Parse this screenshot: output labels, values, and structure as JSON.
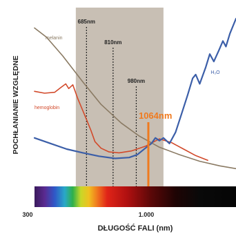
{
  "colors": {
    "melanin": "#8a7a63",
    "hemoglobin": "#d2492a",
    "water": "#3b5ea8",
    "highlight_band": "#c8bfb4",
    "laser_1064": "#f07a1e",
    "guide_line": "#222222",
    "axis_text": "#222222"
  },
  "chart_data": {
    "type": "line",
    "xlabel": "DŁUGOŚĆ FALI (nm)",
    "ylabel": "POCHŁANIANIE WZGLĘDNE",
    "x_ticks": [
      "300",
      "1.000"
    ],
    "series": [
      {
        "name": "melanin",
        "points": [
          [
            0,
            8.5
          ],
          [
            0.06,
            8.0
          ],
          [
            0.14,
            7.0
          ],
          [
            0.24,
            5.6
          ],
          [
            0.33,
            4.4
          ],
          [
            0.43,
            3.4
          ],
          [
            0.52,
            2.7
          ],
          [
            0.62,
            2.1
          ],
          [
            0.72,
            1.7
          ],
          [
            0.82,
            1.35
          ],
          [
            0.92,
            1.1
          ],
          [
            1.0,
            0.95
          ]
        ]
      },
      {
        "name": "hemoglobin",
        "points": [
          [
            0,
            5.1
          ],
          [
            0.05,
            5.0
          ],
          [
            0.1,
            5.05
          ],
          [
            0.13,
            5.3
          ],
          [
            0.155,
            5.5
          ],
          [
            0.17,
            5.25
          ],
          [
            0.19,
            5.45
          ],
          [
            0.215,
            4.7
          ],
          [
            0.25,
            3.8
          ],
          [
            0.28,
            3.0
          ],
          [
            0.3,
            2.4
          ],
          [
            0.33,
            2.05
          ],
          [
            0.37,
            1.85
          ],
          [
            0.42,
            1.8
          ],
          [
            0.48,
            1.9
          ],
          [
            0.55,
            2.15
          ],
          [
            0.62,
            2.55
          ],
          [
            0.68,
            2.35
          ],
          [
            0.74,
            2.0
          ],
          [
            0.8,
            1.65
          ],
          [
            0.86,
            1.4
          ]
        ]
      },
      {
        "name": "H₂O",
        "points": [
          [
            0,
            2.6
          ],
          [
            0.08,
            2.3
          ],
          [
            0.16,
            2.0
          ],
          [
            0.24,
            1.8
          ],
          [
            0.32,
            1.62
          ],
          [
            0.4,
            1.5
          ],
          [
            0.47,
            1.55
          ],
          [
            0.51,
            1.7
          ],
          [
            0.55,
            2.05
          ],
          [
            0.58,
            2.3
          ],
          [
            0.6,
            2.6
          ],
          [
            0.62,
            2.45
          ],
          [
            0.64,
            2.6
          ],
          [
            0.67,
            2.3
          ],
          [
            0.7,
            2.9
          ],
          [
            0.73,
            3.9
          ],
          [
            0.76,
            4.9
          ],
          [
            0.785,
            5.8
          ],
          [
            0.8,
            6.0
          ],
          [
            0.82,
            5.5
          ],
          [
            0.85,
            6.4
          ],
          [
            0.87,
            7.1
          ],
          [
            0.89,
            6.7
          ],
          [
            0.915,
            7.3
          ],
          [
            0.935,
            7.8
          ],
          [
            0.95,
            7.5
          ],
          [
            0.97,
            8.2
          ],
          [
            1.0,
            9.0
          ]
        ]
      }
    ],
    "wavelength_markers": [
      {
        "label": "685nm",
        "x": 0.258
      },
      {
        "label": "810nm",
        "x": 0.39
      },
      {
        "label": "980nm",
        "x": 0.505
      },
      {
        "label": "1064nm",
        "x": 0.565
      }
    ],
    "highlight_range": [
      0.205,
      0.64
    ]
  }
}
